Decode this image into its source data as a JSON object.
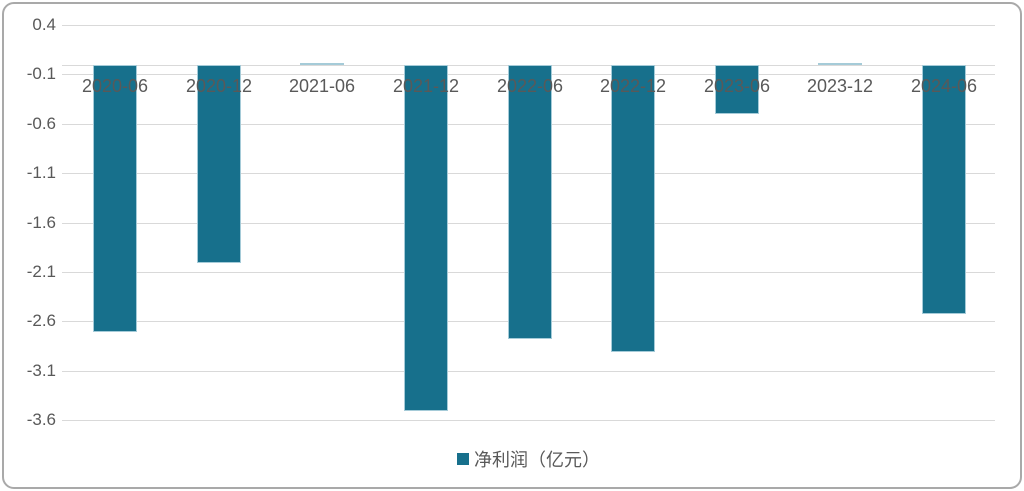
{
  "chart_data": {
    "type": "bar",
    "title": "",
    "xlabel": "",
    "ylabel": "",
    "categories": [
      "2020-06",
      "2020-12",
      "2021-06",
      "2021-12",
      "2022-06",
      "2022-12",
      "2023-06",
      "2023-12",
      "2024-06"
    ],
    "series": [
      {
        "name": "净利润（亿元）",
        "values": [
          -2.7,
          -2.0,
          0.02,
          -3.5,
          -2.77,
          -2.91,
          -0.5,
          0.02,
          -2.52
        ]
      }
    ],
    "yticks": [
      0.4,
      -0.1,
      -0.6,
      -1.1,
      -1.6,
      -2.1,
      -2.6,
      -3.1,
      -3.6
    ],
    "ytick_labels": [
      "0.4",
      "-0.1",
      "-0.6",
      "-1.1",
      "-1.6",
      "-2.1",
      "-2.6",
      "-3.1",
      "-3.6"
    ],
    "ylim": [
      -3.6,
      0.4
    ],
    "grid": true,
    "legend_position": "bottom"
  },
  "legend": {
    "label": "净利润（亿元）"
  },
  "colors": {
    "bar": "#17708c",
    "bar_border": "#a5cbd8",
    "gridline": "#d9d9d9",
    "text": "#595959",
    "frame_border": "#a9a9a9",
    "background": "#ffffff"
  }
}
